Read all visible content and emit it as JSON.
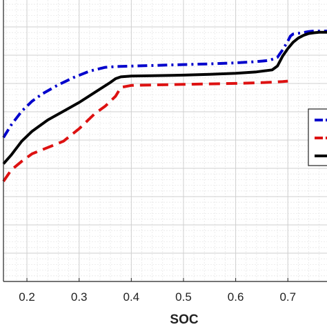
{
  "chart_data": {
    "type": "line",
    "title": "",
    "xlabel": "SOC",
    "ylabel": "",
    "xlim": [
      0.155,
      0.775
    ],
    "ylim": [
      0,
      1
    ],
    "grid": "major and minor",
    "x_ticks": [
      0.2,
      0.3,
      0.4,
      0.5,
      0.6,
      0.7
    ],
    "x_tick_labels": [
      "0.2",
      "0.3",
      "0.4",
      "0.5",
      "0.6",
      "0.7"
    ],
    "legend": {
      "placement": "right",
      "entries_visible": 3
    },
    "series": [
      {
        "color": "#0000cc",
        "dash": "dash-dot",
        "x": [
          0.155,
          0.17,
          0.19,
          0.21,
          0.23,
          0.26,
          0.29,
          0.32,
          0.35,
          0.37,
          0.4,
          0.45,
          0.5,
          0.55,
          0.6,
          0.64,
          0.665,
          0.68,
          0.69,
          0.7,
          0.705,
          0.71,
          0.72,
          0.73,
          0.74,
          0.75,
          0.76,
          0.775
        ],
        "y": [
          0.575,
          0.625,
          0.68,
          0.72,
          0.75,
          0.785,
          0.815,
          0.84,
          0.855,
          0.858,
          0.86,
          0.863,
          0.866,
          0.869,
          0.873,
          0.878,
          0.883,
          0.895,
          0.925,
          0.96,
          0.98,
          0.988,
          0.991,
          0.994,
          0.998,
          1.0,
          1.0,
          1.0
        ]
      },
      {
        "color": "#dd1111",
        "dash": "dashed",
        "x": [
          0.155,
          0.17,
          0.19,
          0.21,
          0.24,
          0.27,
          0.3,
          0.33,
          0.35,
          0.37,
          0.38,
          0.4,
          0.45,
          0.5,
          0.55,
          0.6,
          0.65,
          0.68,
          0.69,
          0.7
        ],
        "y": [
          0.4,
          0.445,
          0.48,
          0.51,
          0.535,
          0.56,
          0.61,
          0.67,
          0.7,
          0.74,
          0.775,
          0.783,
          0.785,
          0.787,
          0.789,
          0.791,
          0.794,
          0.797,
          0.798,
          0.8
        ]
      },
      {
        "color": "#000000",
        "dash": "solid",
        "x": [
          0.155,
          0.17,
          0.19,
          0.21,
          0.24,
          0.27,
          0.3,
          0.33,
          0.36,
          0.37,
          0.38,
          0.4,
          0.45,
          0.5,
          0.55,
          0.6,
          0.64,
          0.67,
          0.68,
          0.69,
          0.7,
          0.71,
          0.72,
          0.73,
          0.74,
          0.75,
          0.76,
          0.775
        ],
        "y": [
          0.47,
          0.505,
          0.56,
          0.6,
          0.645,
          0.68,
          0.715,
          0.755,
          0.795,
          0.81,
          0.817,
          0.82,
          0.822,
          0.824,
          0.827,
          0.831,
          0.837,
          0.845,
          0.86,
          0.9,
          0.93,
          0.955,
          0.972,
          0.983,
          0.99,
          0.993,
          0.995,
          0.995
        ]
      }
    ]
  }
}
